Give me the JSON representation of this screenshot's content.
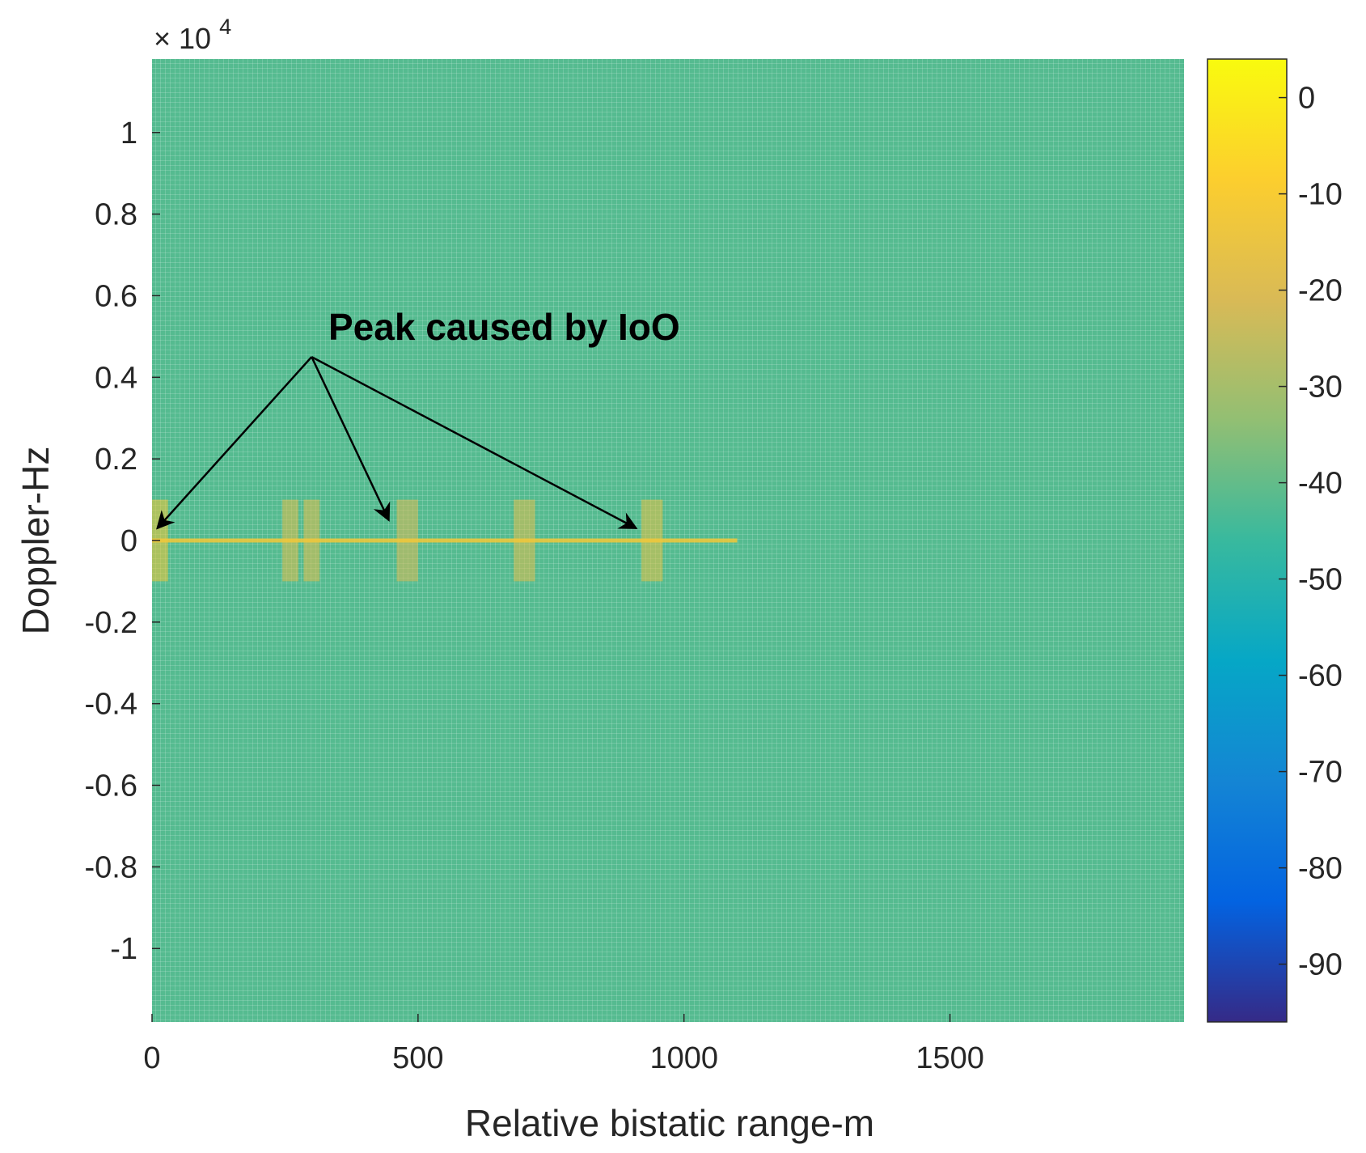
{
  "chart_data": {
    "type": "heatmap",
    "xlabel": "Relative bistatic range-m",
    "ylabel": "Doppler-Hz",
    "xlim": [
      0,
      1940
    ],
    "ylim": [
      -11800,
      11800
    ],
    "x_ticks": [
      0,
      500,
      1000,
      1500
    ],
    "x_tick_labels": [
      "0",
      "500",
      "1000",
      "1500"
    ],
    "y_ticks": [
      10000,
      8000,
      6000,
      4000,
      2000,
      0,
      -2000,
      -4000,
      -6000,
      -8000,
      -10000
    ],
    "y_tick_labels": [
      "1",
      "0.8",
      "0.6",
      "0.4",
      "0.2",
      "0",
      "-0.2",
      "-0.4",
      "-0.6",
      "-0.8",
      "-1"
    ],
    "y_exponent_label": "× 10",
    "y_exponent_power": "4",
    "colorbar": {
      "colormap": "parula",
      "clim": [
        -96,
        4
      ],
      "ticks": [
        0,
        -10,
        -20,
        -30,
        -40,
        -50,
        -60,
        -70,
        -80,
        -90
      ],
      "tick_labels": [
        "0",
        "-10",
        "-20",
        "-30",
        "-40",
        "-50",
        "-60",
        "-70",
        "-80",
        "-90"
      ]
    },
    "background_level_db": -42,
    "zero_doppler_ridge": {
      "doppler": 0,
      "x_end": 1100,
      "level_db": -12
    },
    "peaks": [
      {
        "range": 10,
        "doppler": 0,
        "width_m": 40,
        "doppler_extent": 1000,
        "level_db": -12
      },
      {
        "range": 260,
        "doppler": 0,
        "width_m": 30,
        "doppler_extent": 1000,
        "level_db": -18
      },
      {
        "range": 300,
        "doppler": 0,
        "width_m": 30,
        "doppler_extent": 1000,
        "level_db": -18
      },
      {
        "range": 480,
        "doppler": 0,
        "width_m": 40,
        "doppler_extent": 1000,
        "level_db": -20
      },
      {
        "range": 700,
        "doppler": 0,
        "width_m": 40,
        "doppler_extent": 1000,
        "level_db": -18
      },
      {
        "range": 940,
        "doppler": 0,
        "width_m": 40,
        "doppler_extent": 1000,
        "level_db": -16
      }
    ],
    "annotation": {
      "text": "Peak caused by IoO",
      "anchor": {
        "range": 300,
        "doppler": 4500
      },
      "arrow_targets": [
        {
          "range": 10,
          "doppler": 300
        },
        {
          "range": 445,
          "doppler": 500
        },
        {
          "range": 910,
          "doppler": 300
        }
      ]
    }
  }
}
